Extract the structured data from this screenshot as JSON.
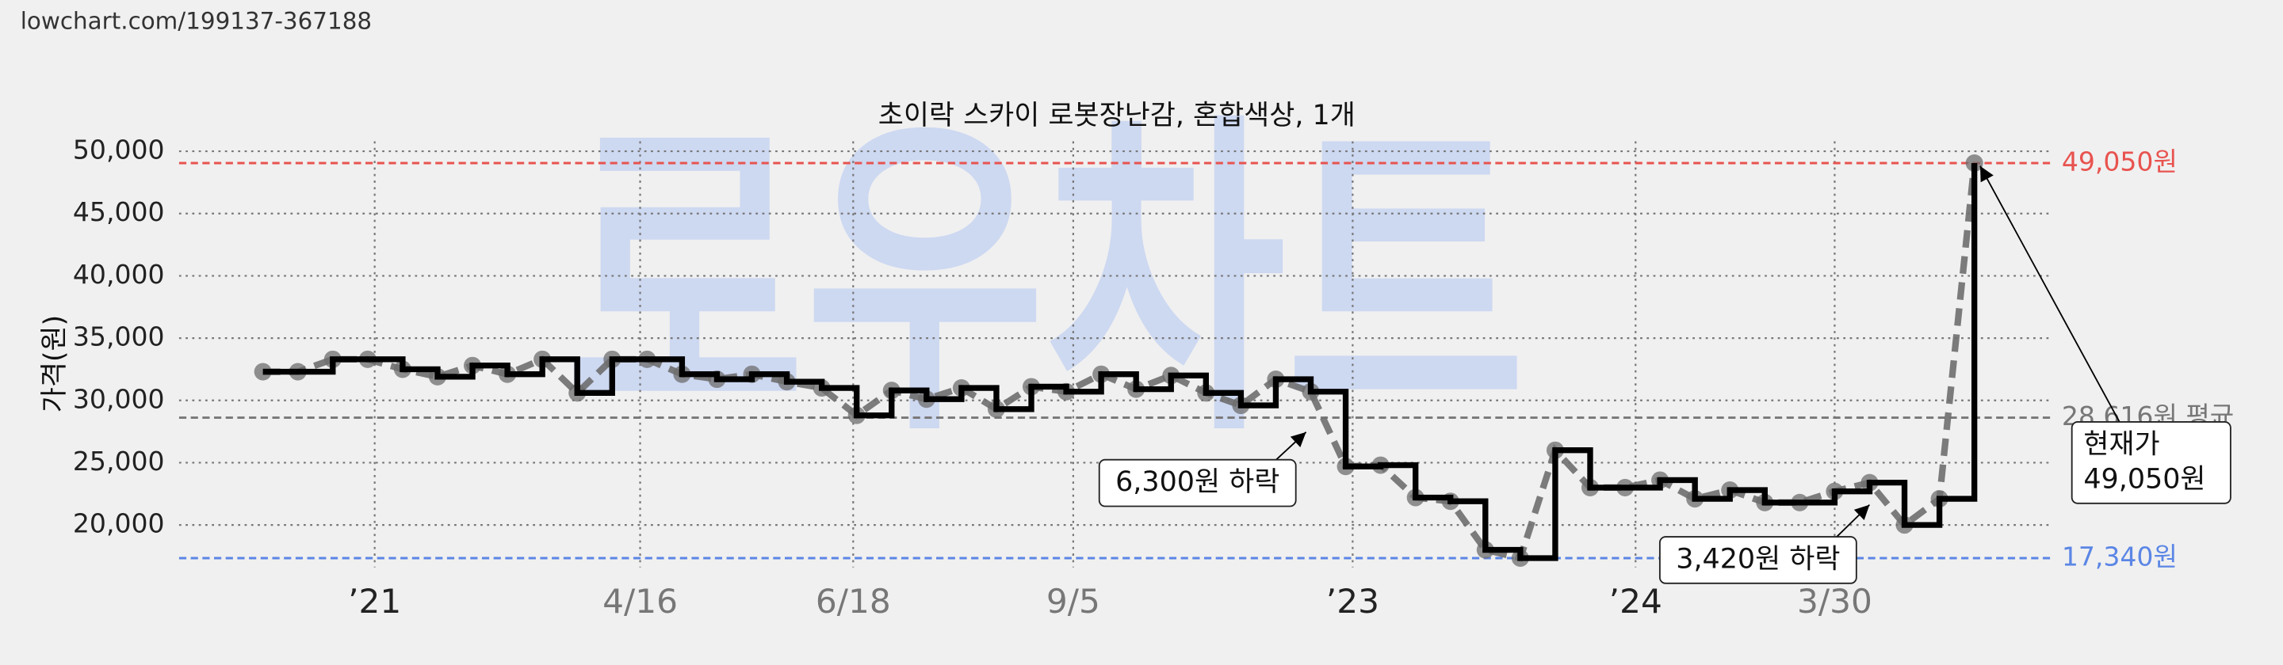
{
  "url": "lowchart.com/199137-367188",
  "watermark": "로우차트",
  "chart_data": {
    "type": "step-line",
    "title": "초이락 스카이 로봇장난감, 혼합색상, 1개",
    "y_label": "가격(원)",
    "values": [
      32300,
      32300,
      33300,
      33300,
      32500,
      31900,
      32800,
      32100,
      33300,
      30600,
      33300,
      33300,
      32100,
      31700,
      32100,
      31500,
      31000,
      28800,
      30800,
      30100,
      31000,
      29300,
      31100,
      30700,
      32100,
      30900,
      32000,
      30600,
      29600,
      31700,
      30700,
      24700,
      24800,
      22200,
      21900,
      18000,
      17340,
      26000,
      23000,
      23000,
      23600,
      22100,
      22800,
      21800,
      21800,
      22700,
      23400,
      20000,
      22100,
      49050
    ],
    "step_color": "#000000",
    "trend_color": "#6e6e6e",
    "ylim": [
      16600,
      50800
    ],
    "yticks": [
      {
        "value": 20000,
        "label": "20,000"
      },
      {
        "value": 25000,
        "label": "25,000"
      },
      {
        "value": 30000,
        "label": "30,000"
      },
      {
        "value": 35000,
        "label": "35,000"
      },
      {
        "value": 40000,
        "label": "40,000"
      },
      {
        "value": 45000,
        "label": "45,000"
      },
      {
        "value": 50000,
        "label": "50,000"
      }
    ],
    "xlim": [
      -2.4,
      51.25
    ],
    "xticks": [
      {
        "value": 3.2,
        "label": "’21"
      },
      {
        "value": 10.8,
        "label": "4/16"
      },
      {
        "value": 16.9,
        "label": "6/18"
      },
      {
        "value": 23.2,
        "label": "9/5"
      },
      {
        "value": 31.2,
        "label": "’23"
      },
      {
        "value": 39.3,
        "label": "’24"
      },
      {
        "value": 45,
        "label": "3/30"
      }
    ],
    "grid": true,
    "reference_lines": [
      {
        "value": 49050,
        "label": "49,050원",
        "color": "#e8534f"
      },
      {
        "value": 28616,
        "label": "28,616원 평균",
        "color": "#777777"
      },
      {
        "value": 17340,
        "label": "17,340원",
        "color": "#5b86e5"
      }
    ],
    "annotations": [
      {
        "lines": [
          "6,300원 하락"
        ]
      },
      {
        "lines": [
          "3,420원 하락"
        ]
      },
      {
        "lines": [
          "현재가",
          "49,050원"
        ]
      }
    ]
  }
}
